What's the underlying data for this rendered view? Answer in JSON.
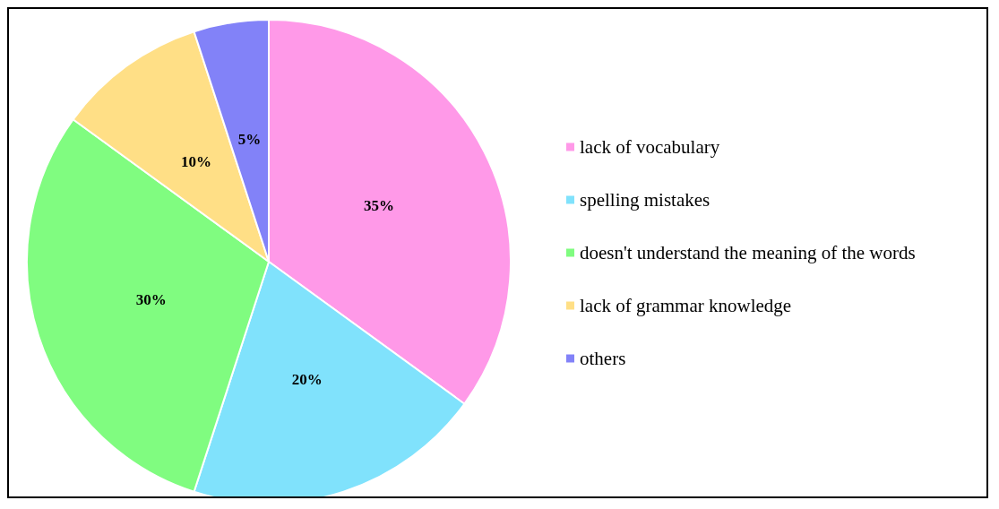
{
  "chart_data": {
    "type": "pie",
    "categories": [
      "lack of vocabulary",
      "spelling mistakes",
      "doesn't understand the meaning of the words",
      "lack of grammar knowledge",
      "others"
    ],
    "values": [
      35,
      20,
      30,
      10,
      5
    ],
    "colors": [
      "#ff99e8",
      "#80e2fc",
      "#80fc80",
      "#ffdf86",
      "#8282f8"
    ],
    "value_labels": [
      "35%",
      "20%",
      "30%",
      "10%",
      "5%"
    ],
    "legend": "right"
  }
}
